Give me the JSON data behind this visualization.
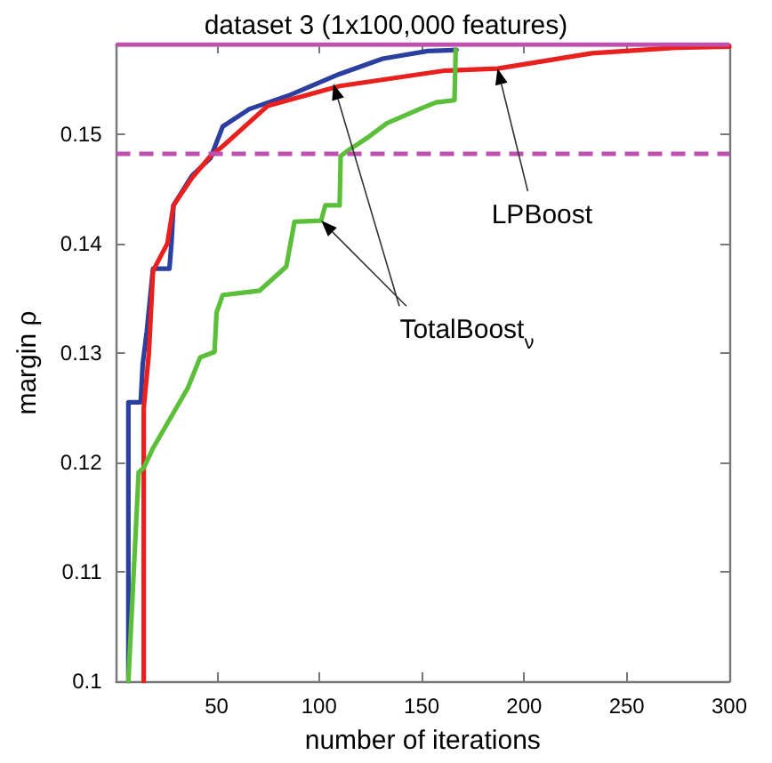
{
  "chart_data": {
    "type": "line",
    "title": "dataset 3 (1x100,000 features)",
    "xlabel": "number of iterations",
    "ylabel": "margin ρ",
    "xlim": [
      1,
      300
    ],
    "xticks": [
      50,
      100,
      150,
      200,
      250,
      300
    ],
    "ylim": [
      0.1,
      0.1582
    ],
    "yticks": [
      0.1,
      0.11,
      0.12,
      0.13,
      0.14,
      0.15
    ],
    "grid": false,
    "marker": "none",
    "line_style": "solid",
    "series": [
      {
        "color": "#2b3fa0",
        "x": [
          7,
          7,
          13,
          14,
          16,
          19,
          27,
          28,
          29,
          38,
          47,
          53,
          66,
          86,
          110,
          131,
          153,
          167
        ],
        "values": [
          0.1,
          0.1255,
          0.1255,
          0.129,
          0.132,
          0.1377,
          0.1377,
          0.14,
          0.1435,
          0.1462,
          0.1478,
          0.1507,
          0.1523,
          0.1536,
          0.1555,
          0.1569,
          0.1576,
          0.1577
        ]
      },
      {
        "color": "#e8201e",
        "x": [
          14.5,
          14.5,
          17,
          19,
          26,
          29,
          38,
          47,
          53,
          75,
          110,
          161,
          187,
          233,
          274,
          300
        ],
        "values": [
          0.1,
          0.125,
          0.13,
          0.1375,
          0.14,
          0.1435,
          0.146,
          0.148,
          0.1489,
          0.1526,
          0.1544,
          0.1558,
          0.156,
          0.1574,
          0.1579,
          0.158
        ]
      },
      {
        "color": "#5cbf3a",
        "x": [
          7,
          12,
          14.5,
          19,
          36,
          42,
          49,
          50,
          53,
          71,
          84,
          88,
          101,
          103,
          110,
          110.5,
          114,
          123,
          133,
          149,
          157,
          166,
          166.6
        ],
        "values": [
          0.1,
          0.1191,
          0.1195,
          0.1213,
          0.1268,
          0.1296,
          0.1301,
          0.1337,
          0.1353,
          0.1357,
          0.1379,
          0.142,
          0.1421,
          0.1435,
          0.1435,
          0.148,
          0.1485,
          0.1496,
          0.151,
          0.1523,
          0.1529,
          0.1531,
          0.1577
        ]
      }
    ],
    "ref_lines": [
      {
        "axis": "y",
        "value": 0.1582,
        "color": "#c050b0",
        "line_style": "solid"
      },
      {
        "axis": "y",
        "value": 0.1482,
        "color": "#c050b0",
        "line_style": "dashed"
      }
    ],
    "annotations": [
      {
        "text": "LPBoost",
        "x": 187,
        "y": 0.156
      },
      {
        "text": "TotalBoost$_{ν}$",
        "x": 107,
        "y": 0.1546
      }
    ]
  }
}
